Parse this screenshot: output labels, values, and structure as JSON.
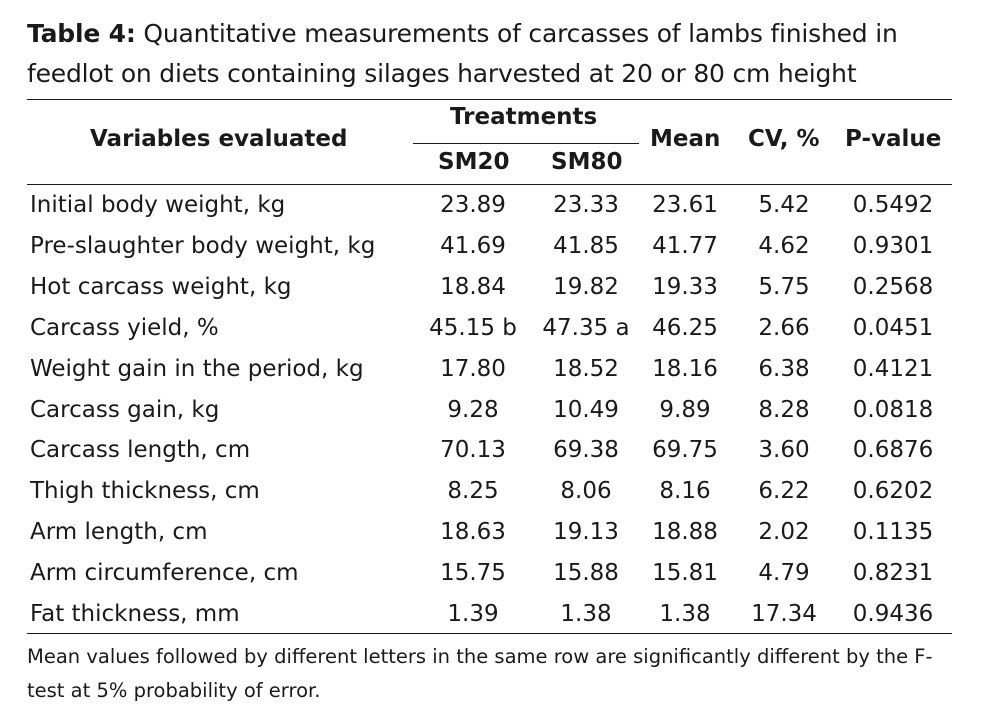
{
  "caption": {
    "label": "Table 4:",
    "text": "Quantitative measurements of carcasses of lambs finished in feedlot on diets containing silages harvested at 20 or 80 cm height"
  },
  "headers": {
    "variables": "Variables evaluated",
    "treatments": "Treatments",
    "sm20": "SM20",
    "sm80": "SM80",
    "mean": "Mean",
    "cv": "CV, %",
    "pvalue": "P-value"
  },
  "rows": [
    {
      "name": "Initial body weight, kg",
      "sm20": "23.89",
      "sm80": "23.33",
      "mean": "23.61",
      "cv": "5.42",
      "p": "0.5492"
    },
    {
      "name": "Pre-slaughter body weight, kg",
      "sm20": "41.69",
      "sm80": "41.85",
      "mean": "41.77",
      "cv": "4.62",
      "p": "0.9301"
    },
    {
      "name": "Hot carcass weight, kg",
      "sm20": "18.84",
      "sm80": "19.82",
      "mean": "19.33",
      "cv": "5.75",
      "p": "0.2568"
    },
    {
      "name": "Carcass yield, %",
      "sm20": "45.15 b",
      "sm80": "47.35 a",
      "mean": "46.25",
      "cv": "2.66",
      "p": "0.0451"
    },
    {
      "name": "Weight gain in the period, kg",
      "sm20": "17.80",
      "sm80": "18.52",
      "mean": "18.16",
      "cv": "6.38",
      "p": "0.4121"
    },
    {
      "name": "Carcass gain, kg",
      "sm20": "9.28",
      "sm80": "10.49",
      "mean": "9.89",
      "cv": "8.28",
      "p": "0.0818"
    },
    {
      "name": "Carcass length, cm",
      "sm20": "70.13",
      "sm80": "69.38",
      "mean": "69.75",
      "cv": "3.60",
      "p": "0.6876"
    },
    {
      "name": "Thigh thickness, cm",
      "sm20": "8.25",
      "sm80": "8.06",
      "mean": "8.16",
      "cv": "6.22",
      "p": "0.6202"
    },
    {
      "name": "Arm length, cm",
      "sm20": "18.63",
      "sm80": "19.13",
      "mean": "18.88",
      "cv": "2.02",
      "p": "0.1135"
    },
    {
      "name": "Arm circumference, cm",
      "sm20": "15.75",
      "sm80": "15.88",
      "mean": "15.81",
      "cv": "4.79",
      "p": "0.8231"
    },
    {
      "name": "Fat thickness, mm",
      "sm20": "1.39",
      "sm80": "1.38",
      "mean": "1.38",
      "cv": "17.34",
      "p": "0.9436"
    }
  ],
  "footnote": "Mean values followed by different letters in the same row are significantly different by the F-test at 5% probability of error."
}
